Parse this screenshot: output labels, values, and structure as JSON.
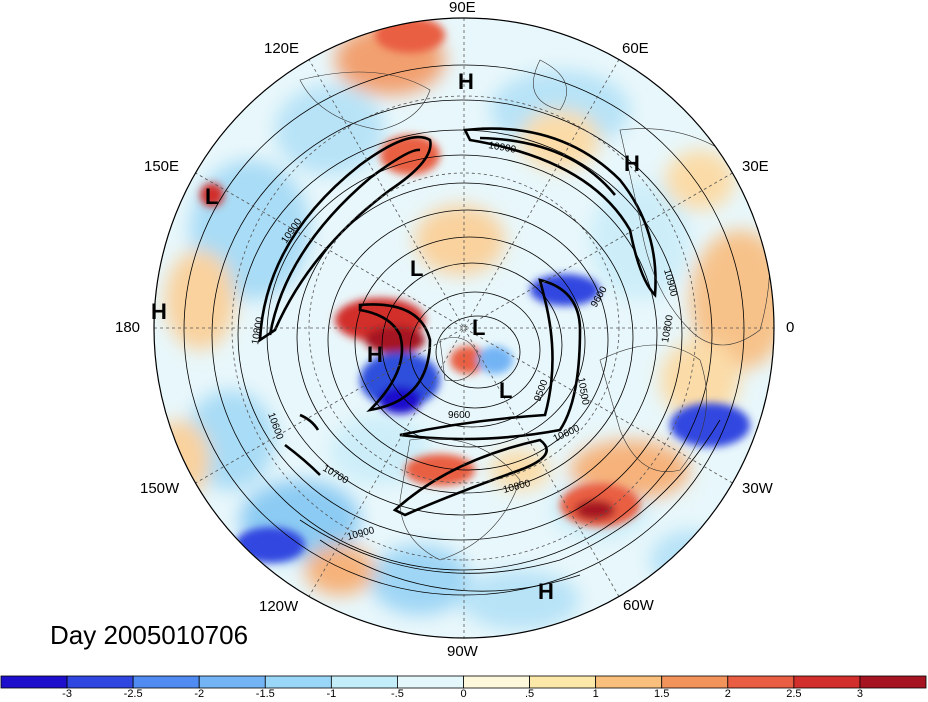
{
  "lon_labels": [
    {
      "id": "90e",
      "text": "90E"
    },
    {
      "id": "60e",
      "text": "60E"
    },
    {
      "id": "30e",
      "text": "30E"
    },
    {
      "id": "0",
      "text": "0"
    },
    {
      "id": "30w",
      "text": "30W"
    },
    {
      "id": "60w",
      "text": "60W"
    },
    {
      "id": "90w",
      "text": "90W"
    },
    {
      "id": "120w",
      "text": "120W"
    },
    {
      "id": "150w",
      "text": "150W"
    },
    {
      "id": "180",
      "text": "180"
    },
    {
      "id": "150e",
      "text": "150E"
    },
    {
      "id": "120e",
      "text": "120E"
    }
  ],
  "pressure_centers": [
    {
      "id": "h1",
      "text": "H"
    },
    {
      "id": "h2",
      "text": "H"
    },
    {
      "id": "l1",
      "text": "L"
    },
    {
      "id": "h3",
      "text": "H"
    },
    {
      "id": "l2",
      "text": "L"
    },
    {
      "id": "l3",
      "text": "L"
    },
    {
      "id": "h4",
      "text": "H"
    },
    {
      "id": "l4",
      "text": "L"
    },
    {
      "id": "h5",
      "text": "H"
    }
  ],
  "contour_labels": [
    {
      "id": "c1",
      "text": "10900"
    },
    {
      "id": "c2",
      "text": "10900"
    },
    {
      "id": "c3",
      "text": "10900"
    },
    {
      "id": "c4",
      "text": "10800"
    },
    {
      "id": "c5",
      "text": "10800"
    },
    {
      "id": "c6",
      "text": "10700"
    },
    {
      "id": "c7",
      "text": "10600"
    },
    {
      "id": "c8",
      "text": "10600"
    },
    {
      "id": "c9",
      "text": "10500"
    },
    {
      "id": "c10",
      "text": "9500"
    },
    {
      "id": "c11",
      "text": "9600"
    },
    {
      "id": "c12",
      "text": "10900"
    },
    {
      "id": "c13",
      "text": "10800"
    },
    {
      "id": "c14",
      "text": "9600"
    }
  ],
  "day_label": "Day 2005010706",
  "colorbar": {
    "colors": [
      "#1e0fcc",
      "#3046e0",
      "#4f8bf0",
      "#73b4f5",
      "#9ad6f7",
      "#c2edf9",
      "#e4f8fb",
      "#fdf8dc",
      "#fce8a8",
      "#f8c07c",
      "#f2935c",
      "#e95e43",
      "#d22f2c",
      "#a51420"
    ],
    "ticks": [
      "-3",
      "-2.5",
      "-2",
      "-1.5",
      "-1",
      "-.5",
      "0",
      ".5",
      "1",
      "1.5",
      "2",
      "2.5",
      "3"
    ]
  }
}
